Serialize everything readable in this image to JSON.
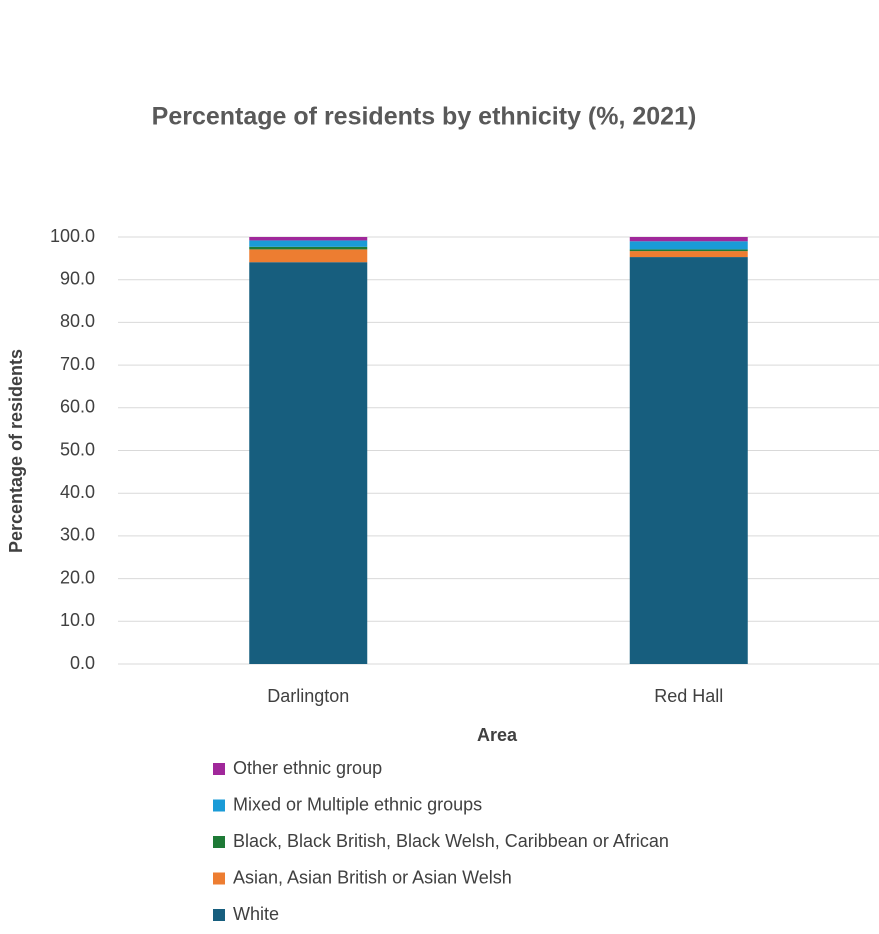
{
  "chart_data": {
    "type": "stacked-bar",
    "title": "Percentage of residents by ethnicity (%, 2021)",
    "x_label": "Area",
    "y_label": "Percentage of residents",
    "categories": [
      "Darlington",
      "Red Hall"
    ],
    "series": [
      {
        "name": "White",
        "color": "#175e7e",
        "values": [
          94.1,
          95.3
        ]
      },
      {
        "name": "Asian, Asian British or Asian Welsh",
        "color": "#ed7d31",
        "values": [
          3.0,
          1.4
        ]
      },
      {
        "name": "Black, Black British, Black Welsh, Caribbean or African",
        "color": "#1e7a36",
        "values": [
          0.6,
          0.4
        ]
      },
      {
        "name": "Mixed or Multiple ethnic groups",
        "color": "#1a9bd7",
        "values": [
          1.5,
          1.9
        ]
      },
      {
        "name": "Other ethnic group",
        "color": "#a0289a",
        "values": [
          0.8,
          1.0
        ]
      }
    ],
    "ylim": [
      0,
      100
    ],
    "yticks": [
      {
        "value": 0,
        "label": "0.0"
      },
      {
        "value": 10,
        "label": "10.0"
      },
      {
        "value": 20,
        "label": "20.0"
      },
      {
        "value": 30,
        "label": "30.0"
      },
      {
        "value": 40,
        "label": "40.0"
      },
      {
        "value": 50,
        "label": "50.0"
      },
      {
        "value": 60,
        "label": "60.0"
      },
      {
        "value": 70,
        "label": "70.0"
      },
      {
        "value": 80,
        "label": "80.0"
      },
      {
        "value": 90,
        "label": "90.0"
      },
      {
        "value": 100,
        "label": "100.0"
      }
    ],
    "grid": true,
    "legend": "bottom"
  }
}
